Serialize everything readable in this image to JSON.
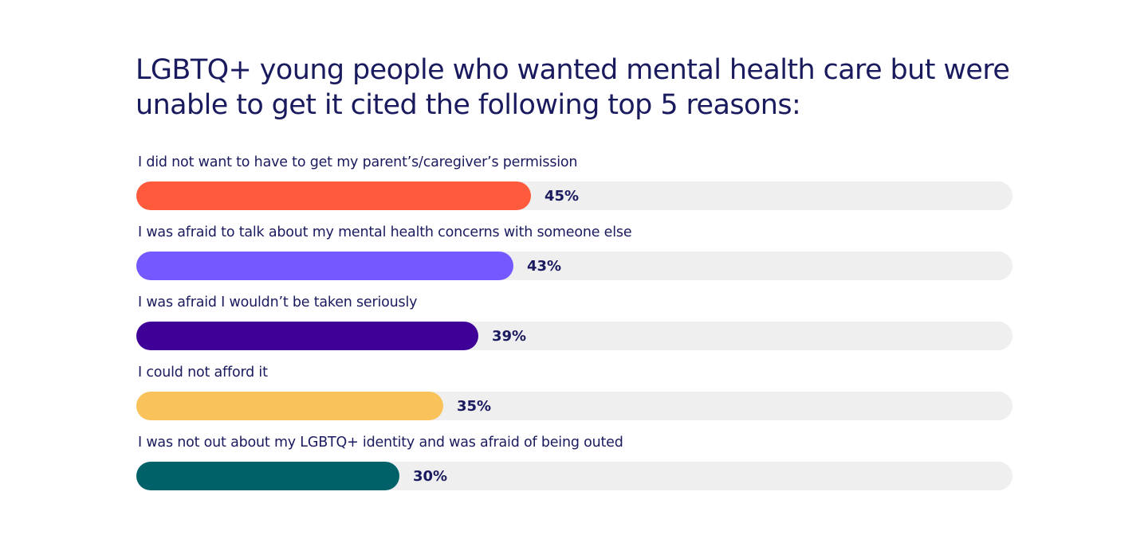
{
  "chart_data": {
    "type": "bar",
    "orientation": "horizontal",
    "title": "LGBTQ+ young people who wanted mental health care but were unable to get it cited the following top 5 reasons:",
    "xlim": [
      0,
      100
    ],
    "grid": false,
    "categories": [
      "I did not want to have to get my parent’s/caregiver’s permission",
      "I was afraid to talk about my mental health concerns with someone else",
      "I was afraid I wouldn’t be taken seriously",
      "I could not afford it",
      "I was not out about my LGBTQ+ identity and was afraid of being outed"
    ],
    "values": [
      45,
      43,
      39,
      35,
      30
    ],
    "value_labels": [
      "45%",
      "43%",
      "39%",
      "35%",
      "30%"
    ],
    "colors": [
      "#ff5a3c",
      "#7558ff",
      "#3f0098",
      "#f9c25a",
      "#006268"
    ],
    "track_color": "#efefef"
  }
}
